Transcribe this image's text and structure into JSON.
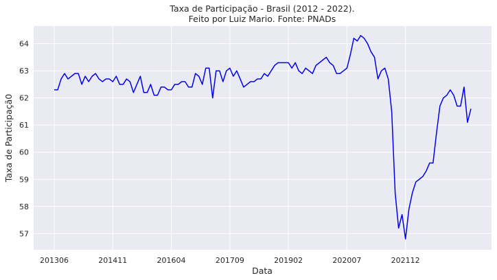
{
  "chart_data": {
    "type": "line",
    "title": "Taxa de Participação - Brasil (2012 - 2022).",
    "subtitle": "Feito por Luiz Mario. Fonte: PNADs",
    "xlabel": "Data",
    "ylabel": "Taxa de Participaçã0",
    "grid": true,
    "ylim": [
      56.4,
      64.65
    ],
    "yticks": [
      57,
      58,
      59,
      60,
      61,
      62,
      63,
      64
    ],
    "xticks": [
      {
        "index": 0,
        "label": "201306"
      },
      {
        "index": 17,
        "label": "201411"
      },
      {
        "index": 34,
        "label": "201604"
      },
      {
        "index": 51,
        "label": "201709"
      },
      {
        "index": 68,
        "label": "201902"
      },
      {
        "index": 85,
        "label": "202007"
      },
      {
        "index": 102,
        "label": "202112"
      }
    ],
    "series": [
      {
        "color": "#0000ee",
        "values": [
          62.3,
          62.3,
          62.7,
          62.9,
          62.7,
          62.8,
          62.9,
          62.9,
          62.5,
          62.8,
          62.6,
          62.8,
          62.9,
          62.7,
          62.6,
          62.7,
          62.7,
          62.6,
          62.8,
          62.5,
          62.5,
          62.7,
          62.6,
          62.2,
          62.5,
          62.8,
          62.2,
          62.2,
          62.5,
          62.1,
          62.1,
          62.4,
          62.4,
          62.3,
          62.3,
          62.5,
          62.5,
          62.6,
          62.6,
          62.4,
          62.4,
          62.9,
          62.8,
          62.5,
          63.1,
          63.1,
          62.0,
          63.0,
          63.0,
          62.6,
          63.0,
          63.1,
          62.8,
          63.0,
          62.7,
          62.4,
          62.5,
          62.6,
          62.6,
          62.7,
          62.7,
          62.9,
          62.8,
          63.0,
          63.2,
          63.3,
          63.3,
          63.3,
          63.3,
          63.1,
          63.3,
          63.0,
          62.9,
          63.1,
          63.0,
          62.9,
          63.2,
          63.3,
          63.4,
          63.5,
          63.3,
          63.2,
          62.9,
          62.9,
          63.0,
          63.1,
          63.6,
          64.2,
          64.1,
          64.3,
          64.2,
          64.0,
          63.7,
          63.5,
          62.7,
          63.0,
          63.1,
          62.7,
          61.5,
          58.5,
          57.2,
          57.7,
          56.8,
          57.9,
          58.5,
          58.9,
          59.0,
          59.1,
          59.3,
          59.6,
          59.6,
          60.7,
          61.7,
          62.0,
          62.1,
          62.3,
          62.1,
          61.7,
          61.7,
          62.4,
          61.1,
          61.6
        ]
      }
    ]
  }
}
